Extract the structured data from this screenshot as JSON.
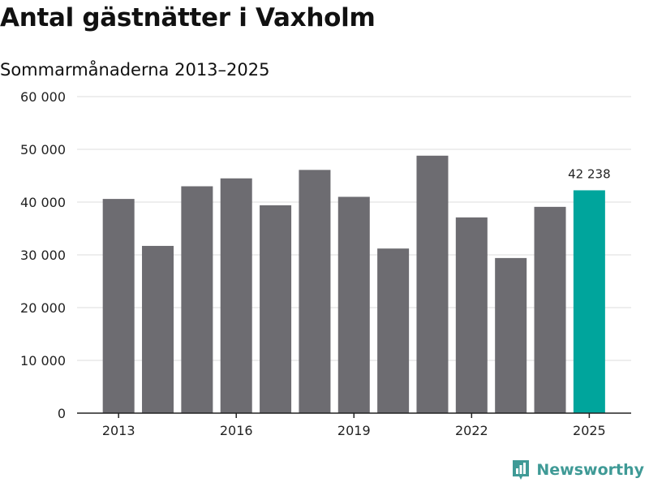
{
  "chart_data": {
    "type": "bar",
    "title": "Antal gästnätter i Vaxholm",
    "subtitle": "Sommarmånaderna 2013–2025",
    "categories": [
      "2013",
      "2014",
      "2015",
      "2016",
      "2017",
      "2018",
      "2019",
      "2020",
      "2021",
      "2022",
      "2023",
      "2024",
      "2025"
    ],
    "values": [
      40600,
      31700,
      43000,
      44500,
      39400,
      46100,
      41000,
      31200,
      48800,
      37100,
      29400,
      39100,
      42238
    ],
    "xtick_labels": [
      "2013",
      "2016",
      "2019",
      "2022",
      "2025"
    ],
    "ytick_labels": [
      "0",
      "10 000",
      "20 000",
      "30 000",
      "40 000",
      "50 000",
      "60 000"
    ],
    "ylim": [
      0,
      60000
    ],
    "yticks": [
      0,
      10000,
      20000,
      30000,
      40000,
      50000,
      60000
    ],
    "highlight": {
      "category": "2025",
      "label": "42 238"
    },
    "colors": {
      "bar": "#6d6c71",
      "highlight": "#00a59c",
      "grid": "#dddddd"
    },
    "grid": true,
    "xlabel": "",
    "ylabel": ""
  },
  "brand": {
    "name": "Newsworthy",
    "color": "#3f9a96"
  }
}
